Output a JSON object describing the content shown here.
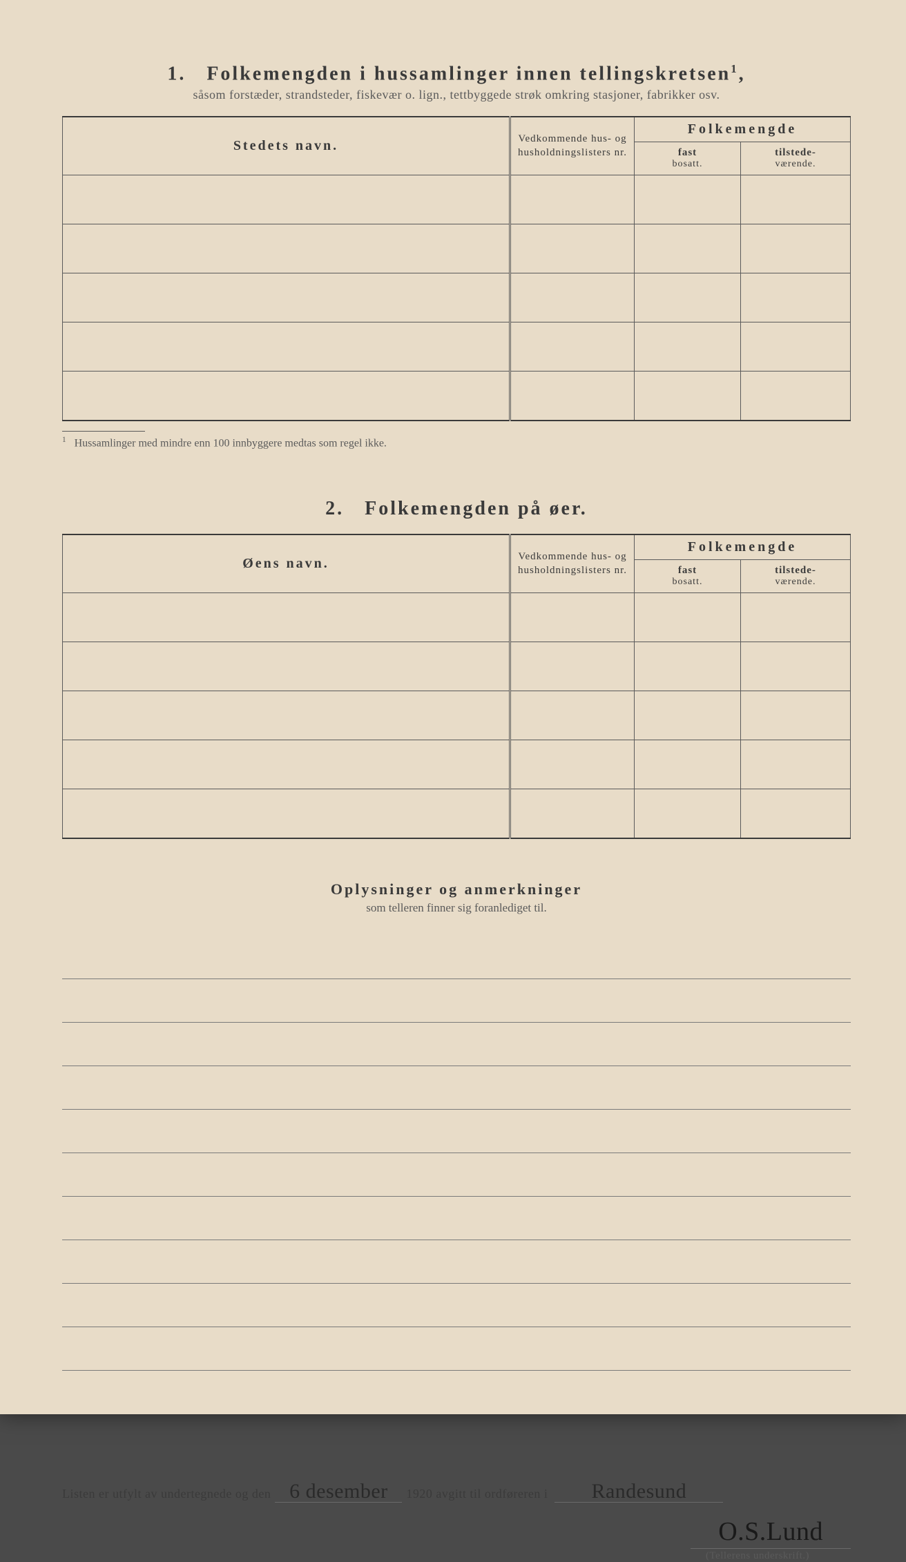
{
  "section1": {
    "number": "1.",
    "title": "Folkemengden i hussamlinger innen tellingskretsen",
    "title_sup": "1",
    "subtitle": "såsom forstæder, strandsteder, fiskevær o. lign., tettbyggede strøk omkring stasjoner, fabrikker osv.",
    "col_name": "Stedets navn.",
    "col_ved": "Vedkommende hus- og husholdningslisters nr.",
    "group_head": "Folkemengde",
    "col_fast_top": "fast",
    "col_fast_bot": "bosatt.",
    "col_til_top": "tilstede-",
    "col_til_bot": "værende.",
    "footnote_num": "1",
    "footnote": "Hussamlinger med mindre enn 100 innbyggere medtas som regel ikke."
  },
  "section2": {
    "number": "2.",
    "title": "Folkemengden på øer.",
    "col_name": "Øens navn.",
    "col_ved": "Vedkommende hus- og husholdningslisters nr.",
    "group_head": "Folkemengde",
    "col_fast_top": "fast",
    "col_fast_bot": "bosatt.",
    "col_til_top": "tilstede-",
    "col_til_bot": "værende."
  },
  "oply": {
    "title": "Oplysninger og anmerkninger",
    "sub": "som telleren finner sig foranlediget til."
  },
  "signature": {
    "pre": "Listen er utfylt av undertegnede og den",
    "date": "6 desember",
    "year": "1920",
    "mid": "avgitt til ordføreren i",
    "place": "Randesund",
    "sig": "O.S.Lund",
    "caption": "(Tellerens underskrift.)"
  },
  "layout": {
    "table1_rows": 5,
    "table2_rows": 5,
    "ruled_lines": 10
  }
}
